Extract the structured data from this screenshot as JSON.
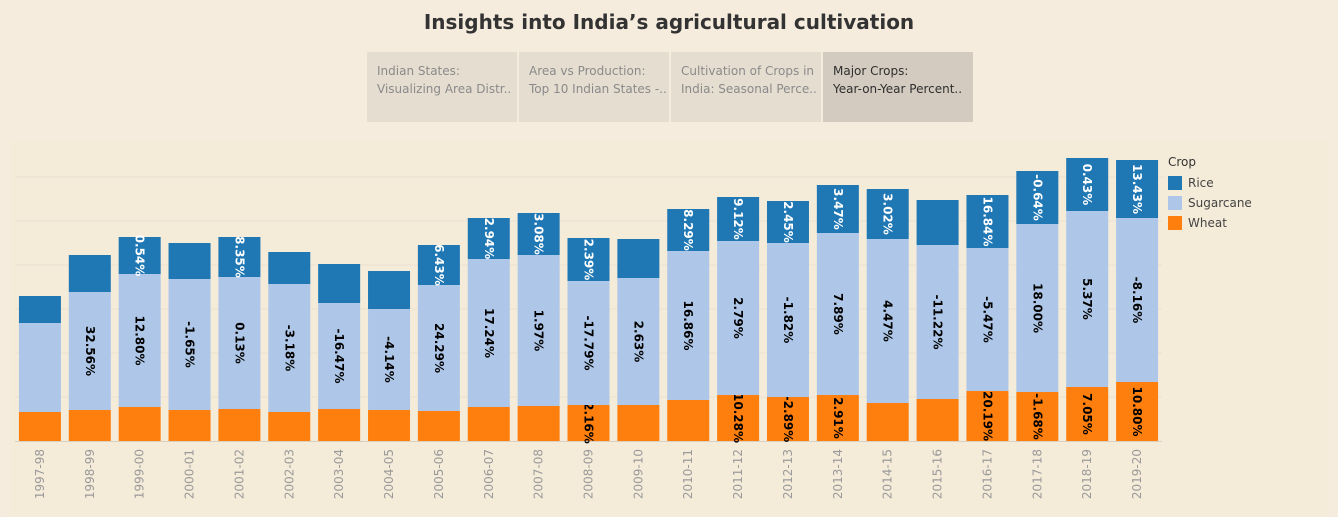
{
  "title": "Insights into India’s agricultural cultivation",
  "tabs": [
    {
      "line1": "Indian States:",
      "line2": "Visualizing Area Distr..",
      "active": false
    },
    {
      "line1": "Area vs Production:",
      "line2": "Top 10 Indian States -..",
      "active": false
    },
    {
      "line1": "Cultivation of Crops in",
      "line2": "India: Seasonal Perce..",
      "active": false
    },
    {
      "line1": "Major Crops:",
      "line2": "Year-on-Year Percent..",
      "active": true
    }
  ],
  "legend": {
    "title": "Crop",
    "items": [
      {
        "label": "Rice",
        "color": "#1f77b4"
      },
      {
        "label": "Sugarcane",
        "color": "#aec7e8"
      },
      {
        "label": "Wheat",
        "color": "#ff7f0e"
      }
    ]
  },
  "chart_data": {
    "type": "bar",
    "stacked": true,
    "categories": [
      "1997-98",
      "1998-99",
      "1999-00",
      "2000-01",
      "2001-02",
      "2002-03",
      "2003-04",
      "2004-05",
      "2005-06",
      "2006-07",
      "2007-08",
      "2008-09",
      "2009-10",
      "2010-11",
      "2011-12",
      "2012-13",
      "2013-14",
      "2014-15",
      "2015-16",
      "2016-17",
      "2017-18",
      "2018-19",
      "2019-20"
    ],
    "series": [
      {
        "name": "Wheat",
        "color": "#ff7f0e",
        "values": [
          29,
          31,
          34,
          31,
          32,
          29,
          32,
          31,
          30,
          34,
          35,
          36,
          36,
          41,
          46,
          44,
          46,
          38,
          42,
          50,
          49,
          54,
          59
        ],
        "labels": [
          "",
          "",
          "",
          "",
          "",
          "",
          "",
          "",
          "",
          "",
          "",
          "2.16%",
          "",
          "",
          "10.28%",
          "-2.89%",
          "2.91%",
          "",
          "",
          "20.19%",
          "-1.68%",
          "7.05%",
          "10.80%"
        ]
      },
      {
        "name": "Sugarcane",
        "color": "#aec7e8",
        "values": [
          89,
          118,
          133,
          131,
          132,
          128,
          106,
          101,
          126,
          148,
          151,
          124,
          127,
          149,
          154,
          154,
          162,
          164,
          154,
          143,
          168,
          176,
          164
        ],
        "labels": [
          "",
          "32.56%",
          "12.80%",
          "-1.65%",
          "0.13%",
          "-3.18%",
          "-16.47%",
          "-4.14%",
          "24.29%",
          "17.24%",
          "1.97%",
          "-17.79%",
          "2.63%",
          "16.86%",
          "2.79%",
          "-1.82%",
          "7.89%",
          "4.47%",
          "-11.22%",
          "-5.47%",
          "18.00%",
          "5.37%",
          "-8.16%"
        ]
      },
      {
        "name": "Rice",
        "color": "#1f77b4",
        "values": [
          27,
          37,
          37,
          36,
          40,
          32,
          39,
          38,
          40,
          41,
          42,
          43,
          39,
          42,
          44,
          42,
          48,
          50,
          45,
          53,
          53,
          53,
          58
        ],
        "labels": [
          "",
          "",
          "0.54%",
          "",
          "8.35%",
          "",
          "",
          "",
          "6.43%",
          "2.94%",
          "3.08%",
          "2.39%",
          "",
          "8.29%",
          "9.12%",
          "2.45%",
          "3.47%",
          "3.02%",
          "",
          "16.84%",
          "-0.64%",
          "0.43%",
          "13.43%"
        ]
      }
    ],
    "ylim": [
      0,
      300
    ],
    "grid": true,
    "legend_position": "right"
  }
}
